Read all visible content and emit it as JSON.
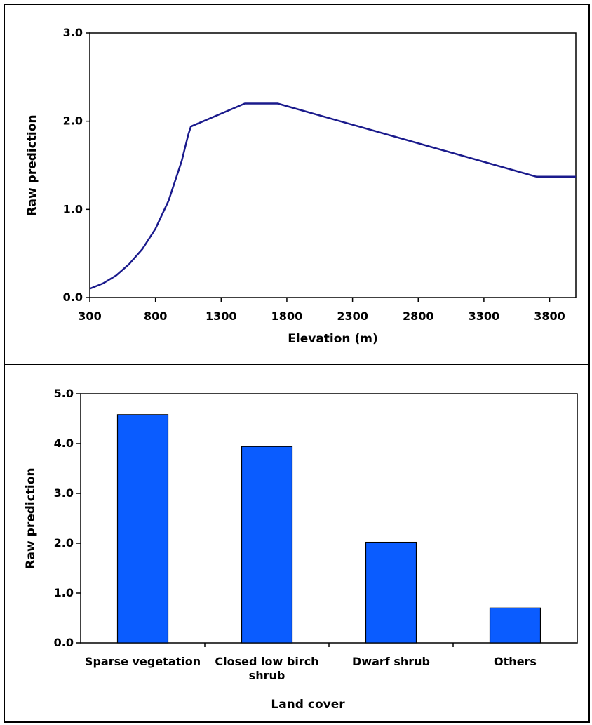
{
  "chart_data": [
    {
      "type": "line",
      "xlabel": "Elevation (m)",
      "ylabel": "Raw prediction",
      "xlim": [
        300,
        4000
      ],
      "ylim": [
        0,
        3
      ],
      "x_ticks": [
        300,
        800,
        1300,
        1800,
        2300,
        2800,
        3300,
        3800
      ],
      "x_tick_labels": [
        "300",
        "800",
        "1300",
        "1800",
        "2300",
        "2800",
        "3300",
        "3800"
      ],
      "y_ticks": [
        0,
        1,
        2,
        3
      ],
      "y_tick_labels": [
        "0.0",
        "1.0",
        "2.0",
        "3.0"
      ],
      "grid": false,
      "series": [
        {
          "color": "#1a1a8c",
          "x": [
            300,
            400,
            500,
            600,
            700,
            800,
            900,
            1000,
            1050,
            1070,
            1480,
            1730,
            3700,
            4000
          ],
          "y": [
            0.1,
            0.16,
            0.25,
            0.38,
            0.55,
            0.78,
            1.1,
            1.55,
            1.85,
            1.94,
            2.2,
            2.2,
            1.37,
            1.37
          ]
        }
      ]
    },
    {
      "type": "bar",
      "xlabel": "Land cover",
      "ylabel": "Raw prediction",
      "ylim": [
        0,
        5
      ],
      "y_ticks": [
        0,
        1,
        2,
        3,
        4,
        5
      ],
      "y_tick_labels": [
        "0.0",
        "1.0",
        "2.0",
        "3.0",
        "4.0",
        "5.0"
      ],
      "grid": false,
      "bar_color": "#0a5cff",
      "categories": [
        [
          "Sparse vegetation"
        ],
        [
          "Closed low birch",
          "shrub"
        ],
        [
          "Dwarf shrub"
        ],
        [
          "Others"
        ]
      ],
      "values": [
        4.58,
        3.94,
        2.02,
        0.7
      ]
    }
  ]
}
